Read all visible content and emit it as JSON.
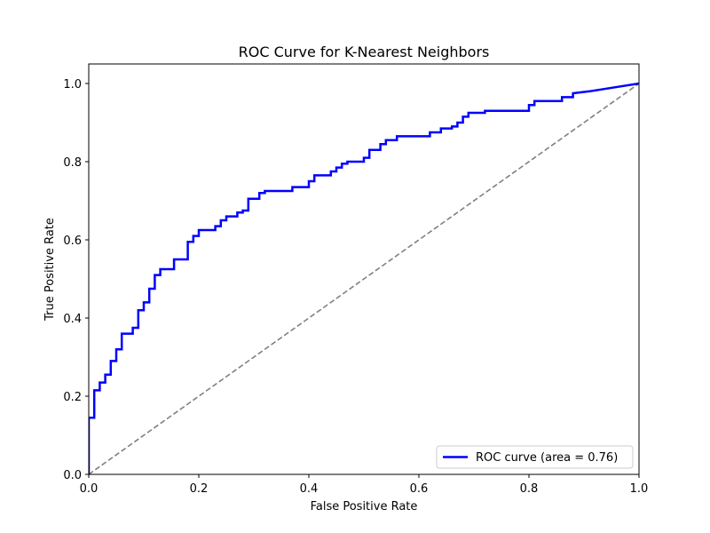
{
  "chart_data": {
    "type": "line",
    "title": "ROC Curve for K-Nearest Neighbors",
    "xlabel": "False Positive Rate",
    "ylabel": "True Positive Rate",
    "xlim": [
      0.0,
      1.0
    ],
    "ylim": [
      0.0,
      1.05
    ],
    "xticks": [
      0.0,
      0.2,
      0.4,
      0.6,
      0.8,
      1.0
    ],
    "yticks": [
      0.0,
      0.2,
      0.4,
      0.6,
      0.8,
      1.0
    ],
    "xtick_labels": [
      "0.0",
      "0.2",
      "0.4",
      "0.6",
      "0.8",
      "1.0"
    ],
    "ytick_labels": [
      "0.0",
      "0.2",
      "0.4",
      "0.6",
      "0.8",
      "1.0"
    ],
    "grid": false,
    "legend_position": "lower-right",
    "series": [
      {
        "name": "ROC curve (area = 0.76)",
        "color": "#0000ff",
        "style": "solid",
        "x": [
          0.0,
          0.0,
          0.01,
          0.01,
          0.02,
          0.02,
          0.03,
          0.03,
          0.04,
          0.04,
          0.05,
          0.05,
          0.06,
          0.06,
          0.08,
          0.08,
          0.09,
          0.09,
          0.1,
          0.1,
          0.11,
          0.11,
          0.12,
          0.12,
          0.13,
          0.13,
          0.155,
          0.155,
          0.18,
          0.18,
          0.19,
          0.19,
          0.2,
          0.2,
          0.23,
          0.23,
          0.24,
          0.24,
          0.25,
          0.25,
          0.27,
          0.27,
          0.28,
          0.28,
          0.29,
          0.29,
          0.31,
          0.31,
          0.32,
          0.32,
          0.37,
          0.37,
          0.4,
          0.4,
          0.41,
          0.41,
          0.44,
          0.44,
          0.45,
          0.45,
          0.46,
          0.46,
          0.47,
          0.47,
          0.5,
          0.5,
          0.51,
          0.51,
          0.53,
          0.53,
          0.54,
          0.54,
          0.56,
          0.56,
          0.62,
          0.62,
          0.64,
          0.64,
          0.66,
          0.66,
          0.67,
          0.67,
          0.68,
          0.68,
          0.69,
          0.69,
          0.72,
          0.72,
          0.8,
          0.8,
          0.81,
          0.81,
          0.86,
          0.86,
          0.88,
          0.88,
          0.91,
          1.0
        ],
        "y": [
          0.0,
          0.145,
          0.145,
          0.215,
          0.215,
          0.235,
          0.235,
          0.255,
          0.255,
          0.29,
          0.29,
          0.32,
          0.32,
          0.36,
          0.36,
          0.375,
          0.375,
          0.42,
          0.42,
          0.44,
          0.44,
          0.475,
          0.475,
          0.51,
          0.51,
          0.525,
          0.525,
          0.55,
          0.55,
          0.595,
          0.595,
          0.61,
          0.61,
          0.625,
          0.625,
          0.635,
          0.635,
          0.65,
          0.65,
          0.66,
          0.66,
          0.67,
          0.67,
          0.675,
          0.675,
          0.705,
          0.705,
          0.72,
          0.72,
          0.725,
          0.725,
          0.735,
          0.735,
          0.75,
          0.75,
          0.765,
          0.765,
          0.775,
          0.775,
          0.785,
          0.785,
          0.795,
          0.795,
          0.8,
          0.8,
          0.81,
          0.81,
          0.83,
          0.83,
          0.845,
          0.845,
          0.855,
          0.855,
          0.865,
          0.865,
          0.875,
          0.875,
          0.885,
          0.885,
          0.89,
          0.89,
          0.9,
          0.9,
          0.915,
          0.915,
          0.925,
          0.925,
          0.93,
          0.93,
          0.945,
          0.945,
          0.955,
          0.955,
          0.965,
          0.965,
          0.975,
          0.98,
          1.0
        ]
      },
      {
        "name": "",
        "color": "#808080",
        "style": "dashed",
        "x": [
          0.0,
          1.0
        ],
        "y": [
          0.0,
          1.0
        ]
      }
    ]
  }
}
